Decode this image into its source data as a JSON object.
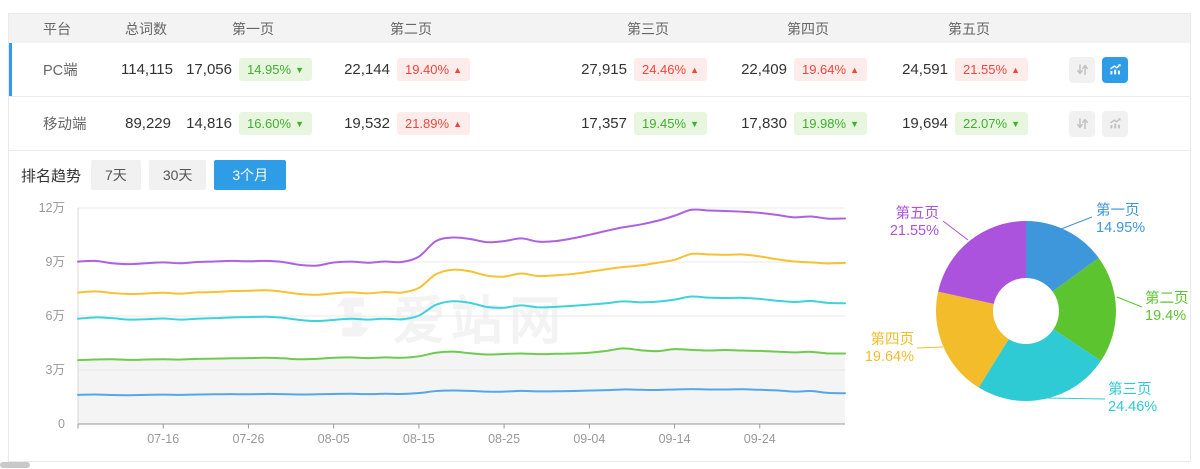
{
  "colors": {
    "accent": "#2E9DE6",
    "up_red": "#F0453F",
    "down_green": "#3FAF2E",
    "area_fill": "#F4F4F4",
    "axis_text": "#999999"
  },
  "table": {
    "headers": [
      "平台",
      "总词数",
      "第一页",
      "第二页",
      "第三页",
      "第四页",
      "第五页"
    ],
    "row_icons": [
      "sort-arrows-icon",
      "trend-chart-icon"
    ],
    "rows": [
      {
        "platform": "PC端",
        "total": "114,115",
        "active": true,
        "pages": [
          {
            "value": "17,056",
            "pct": "14.95%",
            "dir": "down"
          },
          {
            "value": "22,144",
            "pct": "19.40%",
            "dir": "up"
          },
          {
            "value": "27,915",
            "pct": "24.46%",
            "dir": "up"
          },
          {
            "value": "22,409",
            "pct": "19.64%",
            "dir": "up"
          },
          {
            "value": "24,591",
            "pct": "21.55%",
            "dir": "up"
          }
        ]
      },
      {
        "platform": "移动端",
        "total": "89,229",
        "active": false,
        "pages": [
          {
            "value": "14,816",
            "pct": "16.60%",
            "dir": "down"
          },
          {
            "value": "19,532",
            "pct": "21.89%",
            "dir": "up"
          },
          {
            "value": "17,357",
            "pct": "19.45%",
            "dir": "down"
          },
          {
            "value": "17,830",
            "pct": "19.98%",
            "dir": "down"
          },
          {
            "value": "19,694",
            "pct": "22.07%",
            "dir": "down"
          }
        ]
      }
    ]
  },
  "trend": {
    "label": "排名趋势",
    "tabs": [
      {
        "label": "7天",
        "active": false
      },
      {
        "label": "30天",
        "active": false
      },
      {
        "label": "3个月",
        "active": true
      }
    ]
  },
  "watermark": "爱站网",
  "chart_data": [
    {
      "type": "line",
      "title": "排名趋势 3个月 (PC端)",
      "x_start": "07-06",
      "x_end": "10-04",
      "x_step_days": 2,
      "x_tick_labels": [
        "07-16",
        "07-26",
        "08-05",
        "08-15",
        "08-25",
        "09-04",
        "09-14",
        "09-24"
      ],
      "y_tick_labels": [
        "0",
        "3万",
        "6万",
        "9万",
        "12万"
      ],
      "ylim_wan": [
        0,
        12
      ],
      "grid": true,
      "unit": "万 (10,000 keywords)",
      "note": "cumulative stacked keyword counts; each line = total up to that page",
      "series": [
        {
          "name": "第一页",
          "color": "#54A7E8",
          "values_wan": [
            1.62,
            1.64,
            1.61,
            1.6,
            1.62,
            1.63,
            1.62,
            1.64,
            1.65,
            1.66,
            1.65,
            1.67,
            1.66,
            1.64,
            1.65,
            1.67,
            1.68,
            1.66,
            1.68,
            1.67,
            1.72,
            1.83,
            1.86,
            1.84,
            1.8,
            1.8,
            1.84,
            1.81,
            1.82,
            1.83,
            1.86,
            1.88,
            1.92,
            1.9,
            1.89,
            1.92,
            1.94,
            1.92,
            1.92,
            1.93,
            1.9,
            1.87,
            1.8,
            1.83,
            1.73,
            1.71
          ]
        },
        {
          "name": "第二页",
          "color": "#6FCA4F",
          "area_fill": "#F4F4F4",
          "values_wan": [
            3.55,
            3.58,
            3.6,
            3.56,
            3.58,
            3.6,
            3.58,
            3.62,
            3.63,
            3.65,
            3.66,
            3.68,
            3.65,
            3.6,
            3.62,
            3.68,
            3.7,
            3.66,
            3.7,
            3.68,
            3.76,
            3.96,
            4.02,
            3.93,
            3.86,
            3.89,
            3.92,
            3.88,
            3.9,
            3.92,
            3.96,
            4.06,
            4.2,
            4.1,
            4.05,
            4.16,
            4.12,
            4.08,
            4.11,
            4.08,
            4.06,
            4.02,
            3.98,
            4.01,
            3.92,
            3.92
          ]
        },
        {
          "name": "第三页",
          "color": "#3FD2DA",
          "values_wan": [
            5.85,
            5.92,
            5.88,
            5.8,
            5.82,
            5.86,
            5.8,
            5.85,
            5.88,
            5.92,
            5.94,
            5.96,
            5.9,
            5.78,
            5.72,
            5.78,
            5.85,
            5.8,
            5.85,
            5.82,
            6.02,
            6.62,
            6.82,
            6.73,
            6.5,
            6.46,
            6.59,
            6.48,
            6.51,
            6.56,
            6.63,
            6.71,
            6.81,
            6.76,
            6.8,
            6.91,
            7.08,
            7.02,
            7.0,
            7.01,
            6.95,
            6.85,
            6.78,
            6.83,
            6.73,
            6.71
          ]
        },
        {
          "name": "第四页",
          "color": "#F6C133",
          "values_wan": [
            7.3,
            7.37,
            7.28,
            7.22,
            7.25,
            7.29,
            7.24,
            7.31,
            7.33,
            7.38,
            7.4,
            7.43,
            7.35,
            7.22,
            7.18,
            7.26,
            7.31,
            7.26,
            7.33,
            7.3,
            7.56,
            8.32,
            8.57,
            8.48,
            8.24,
            8.19,
            8.36,
            8.22,
            8.26,
            8.33,
            8.46,
            8.6,
            8.72,
            8.81,
            8.96,
            9.12,
            9.45,
            9.42,
            9.4,
            9.42,
            9.31,
            9.15,
            9.03,
            8.98,
            8.92,
            8.95
          ]
        },
        {
          "name": "第五页",
          "color": "#AC62E2",
          "values_wan": [
            9.02,
            9.06,
            8.93,
            8.88,
            8.93,
            8.98,
            8.93,
            9.0,
            9.03,
            9.06,
            9.04,
            9.06,
            9.0,
            8.84,
            8.8,
            8.97,
            9.02,
            8.96,
            9.03,
            9.0,
            9.3,
            10.16,
            10.36,
            10.28,
            10.1,
            10.16,
            10.31,
            10.13,
            10.16,
            10.31,
            10.51,
            10.73,
            10.93,
            11.08,
            11.29,
            11.57,
            11.9,
            11.86,
            11.83,
            11.79,
            11.73,
            11.62,
            11.48,
            11.53,
            11.41,
            11.42
          ]
        }
      ]
    },
    {
      "type": "pie",
      "donut": true,
      "slices": [
        {
          "name": "第一页",
          "pct": 14.95,
          "label": "14.95%",
          "color": "#3D97DA"
        },
        {
          "name": "第二页",
          "pct": 19.4,
          "label": "19.4%",
          "color": "#5CC42E"
        },
        {
          "name": "第三页",
          "pct": 24.46,
          "label": "24.46%",
          "color": "#2FCBD5"
        },
        {
          "name": "第四页",
          "pct": 19.64,
          "label": "19.64%",
          "color": "#F2BC2B"
        },
        {
          "name": "第五页",
          "pct": 21.55,
          "label": "21.55%",
          "color": "#AB53DC"
        }
      ]
    }
  ]
}
